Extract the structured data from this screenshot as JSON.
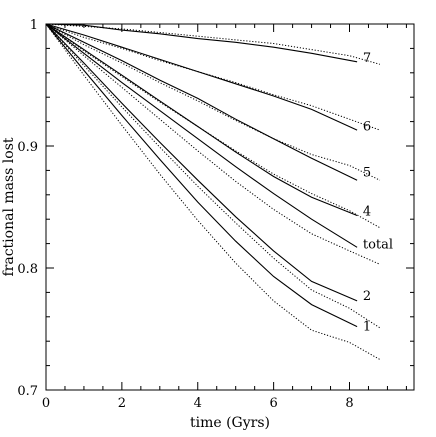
{
  "chart_data": {
    "type": "line",
    "title": "",
    "xlabel": "time (Gyrs)",
    "ylabel": "fractional mass lost",
    "xlim": [
      0,
      9.7
    ],
    "ylim": [
      0.7,
      1.0
    ],
    "x_ticks": [
      "0",
      "2",
      "4",
      "6",
      "8"
    ],
    "y_ticks": [
      "0.7",
      "0.8",
      "0.9",
      "1"
    ],
    "grid": false,
    "legend": "none",
    "series_styles": {
      "solid": "#000000",
      "dotted": "#000000"
    },
    "series": [
      {
        "name": "7",
        "label_x": 8.3,
        "label_y": 0.973,
        "solid": [
          [
            0,
            1.0
          ],
          [
            1,
            0.999
          ],
          [
            2,
            0.995
          ],
          [
            3,
            0.992
          ],
          [
            4,
            0.988
          ],
          [
            5,
            0.985
          ],
          [
            6,
            0.981
          ],
          [
            7,
            0.976
          ],
          [
            8.2,
            0.969
          ]
        ],
        "dotted": [
          [
            0,
            1.0
          ],
          [
            1,
            0.998
          ],
          [
            2,
            0.996
          ],
          [
            3,
            0.993
          ],
          [
            4,
            0.99
          ],
          [
            5,
            0.987
          ],
          [
            6,
            0.984
          ],
          [
            7,
            0.979
          ],
          [
            8,
            0.974
          ],
          [
            8.8,
            0.967
          ]
        ]
      },
      {
        "name": "6",
        "label_x": 8.3,
        "label_y": 0.917,
        "solid": [
          [
            0,
            1.0
          ],
          [
            1,
            0.991
          ],
          [
            2,
            0.981
          ],
          [
            3,
            0.971
          ],
          [
            4,
            0.961
          ],
          [
            5,
            0.951
          ],
          [
            6,
            0.941
          ],
          [
            7,
            0.93
          ],
          [
            8.2,
            0.913
          ]
        ],
        "dotted": [
          [
            0,
            1.0
          ],
          [
            1,
            0.989
          ],
          [
            2,
            0.98
          ],
          [
            3,
            0.97
          ],
          [
            4,
            0.961
          ],
          [
            5,
            0.952
          ],
          [
            6,
            0.942
          ],
          [
            7,
            0.933
          ],
          [
            8,
            0.922
          ],
          [
            8.8,
            0.913
          ]
        ]
      },
      {
        "name": "5",
        "label_x": 8.3,
        "label_y": 0.879,
        "solid": [
          [
            0,
            1.0
          ],
          [
            1,
            0.985
          ],
          [
            2,
            0.97
          ],
          [
            3,
            0.954
          ],
          [
            4,
            0.939
          ],
          [
            5,
            0.922
          ],
          [
            6,
            0.906
          ],
          [
            7,
            0.89
          ],
          [
            8.2,
            0.872
          ]
        ],
        "dotted": [
          [
            0,
            1.0
          ],
          [
            1,
            0.983
          ],
          [
            2,
            0.968
          ],
          [
            3,
            0.952
          ],
          [
            4,
            0.937
          ],
          [
            5,
            0.921
          ],
          [
            6,
            0.906
          ],
          [
            7,
            0.893
          ],
          [
            8,
            0.884
          ],
          [
            8.8,
            0.872
          ]
        ]
      },
      {
        "name": "4",
        "label_x": 8.3,
        "label_y": 0.847,
        "solid": [
          [
            0,
            1.0
          ],
          [
            1,
            0.979
          ],
          [
            2,
            0.958
          ],
          [
            3,
            0.937
          ],
          [
            4,
            0.916
          ],
          [
            5,
            0.895
          ],
          [
            6,
            0.875
          ],
          [
            7,
            0.858
          ],
          [
            8.2,
            0.843
          ]
        ],
        "dotted": [
          [
            0,
            1.0
          ],
          [
            1,
            0.978
          ],
          [
            2,
            0.957
          ],
          [
            3,
            0.936
          ],
          [
            4,
            0.916
          ],
          [
            5,
            0.896
          ],
          [
            6,
            0.877
          ],
          [
            7,
            0.861
          ],
          [
            8,
            0.847
          ],
          [
            8.8,
            0.833
          ]
        ]
      },
      {
        "name": "total",
        "label_x": 8.3,
        "label_y": 0.82,
        "solid": [
          [
            0,
            1.0
          ],
          [
            1,
            0.976
          ],
          [
            2,
            0.952
          ],
          [
            3,
            0.929
          ],
          [
            4,
            0.906
          ],
          [
            5,
            0.883
          ],
          [
            6,
            0.861
          ],
          [
            7,
            0.84
          ],
          [
            8.2,
            0.817
          ]
        ],
        "dotted": [
          [
            0,
            1.0
          ],
          [
            1,
            0.974
          ],
          [
            2,
            0.948
          ],
          [
            3,
            0.922
          ],
          [
            4,
            0.896
          ],
          [
            5,
            0.871
          ],
          [
            6,
            0.848
          ],
          [
            7,
            0.828
          ],
          [
            8,
            0.814
          ],
          [
            8.8,
            0.803
          ]
        ]
      },
      {
        "name": "2",
        "label_x": 8.3,
        "label_y": 0.778,
        "solid": [
          [
            0,
            1.0
          ],
          [
            1,
            0.968
          ],
          [
            2,
            0.935
          ],
          [
            3,
            0.903
          ],
          [
            4,
            0.872
          ],
          [
            5,
            0.842
          ],
          [
            6,
            0.814
          ],
          [
            7,
            0.789
          ],
          [
            8.2,
            0.773
          ]
        ],
        "dotted": [
          [
            0,
            1.0
          ],
          [
            1,
            0.966
          ],
          [
            2,
            0.932
          ],
          [
            3,
            0.899
          ],
          [
            4,
            0.867
          ],
          [
            5,
            0.837
          ],
          [
            6,
            0.808
          ],
          [
            7,
            0.782
          ],
          [
            8,
            0.767
          ],
          [
            8.8,
            0.751
          ]
        ]
      },
      {
        "name": "1",
        "label_x": 8.3,
        "label_y": 0.753,
        "solid": [
          [
            0,
            1.0
          ],
          [
            1,
            0.962
          ],
          [
            2,
            0.925
          ],
          [
            3,
            0.889
          ],
          [
            4,
            0.854
          ],
          [
            5,
            0.822
          ],
          [
            6,
            0.793
          ],
          [
            7,
            0.77
          ],
          [
            8.2,
            0.752
          ]
        ],
        "dotted": [
          [
            0,
            1.0
          ],
          [
            1,
            0.958
          ],
          [
            2,
            0.917
          ],
          [
            3,
            0.877
          ],
          [
            4,
            0.839
          ],
          [
            5,
            0.804
          ],
          [
            6,
            0.773
          ],
          [
            7,
            0.749
          ],
          [
            8,
            0.739
          ],
          [
            8.8,
            0.725
          ]
        ]
      }
    ]
  }
}
